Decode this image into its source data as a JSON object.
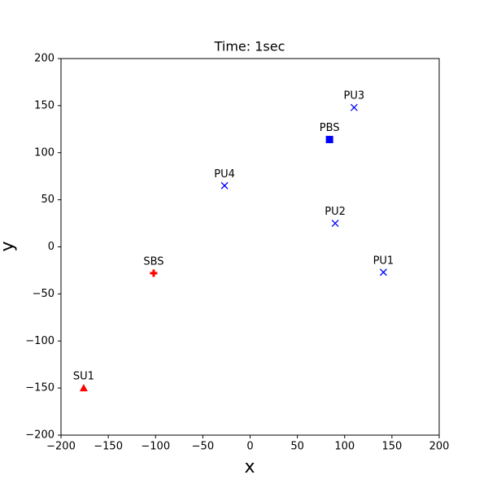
{
  "chart_data": {
    "type": "scatter",
    "title": "Time: 1sec",
    "x_label": "x",
    "y_label": "y",
    "xlim": [
      -200,
      200
    ],
    "ylim": [
      -200,
      200
    ],
    "xticks": [
      {
        "value": -200,
        "label": "−200"
      },
      {
        "value": -150,
        "label": "−150"
      },
      {
        "value": -100,
        "label": "−100"
      },
      {
        "value": -50,
        "label": "−50"
      },
      0,
      50,
      100,
      150,
      200
    ],
    "yticks": [
      {
        "value": -200,
        "label": "−200"
      },
      {
        "value": -150,
        "label": "−150"
      },
      {
        "value": -100,
        "label": "−100"
      },
      {
        "value": -50,
        "label": "−50"
      },
      0,
      50,
      100,
      150,
      200
    ],
    "series": [
      {
        "name": "PU1",
        "color": "#0000ff",
        "marker": "x",
        "x": [
          141
        ],
        "values": [
          -27
        ]
      },
      {
        "name": "PU2",
        "color": "#0000ff",
        "marker": "x",
        "x": [
          90
        ],
        "values": [
          25
        ]
      },
      {
        "name": "PU3",
        "color": "#0000ff",
        "marker": "x",
        "x": [
          110
        ],
        "values": [
          148
        ]
      },
      {
        "name": "PU4",
        "color": "#0000ff",
        "marker": "x",
        "x": [
          -27
        ],
        "values": [
          65
        ]
      },
      {
        "name": "PBS",
        "color": "#0000ff",
        "marker": "square",
        "x": [
          84
        ],
        "values": [
          114
        ]
      },
      {
        "name": "SBS",
        "color": "#ff0000",
        "marker": "plus",
        "x": [
          -102
        ],
        "values": [
          -28
        ]
      },
      {
        "name": "SU1",
        "color": "#ff0000",
        "marker": "triangle",
        "x": [
          -176
        ],
        "values": [
          -150
        ]
      }
    ]
  }
}
